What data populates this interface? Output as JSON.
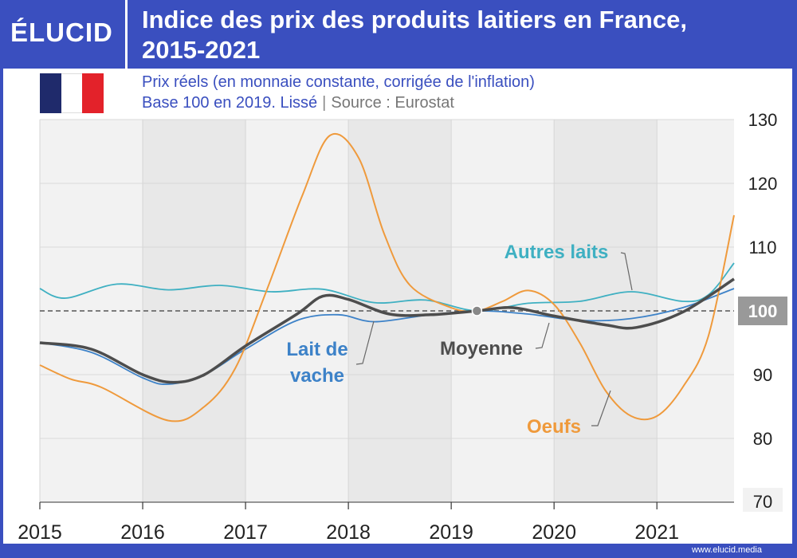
{
  "header": {
    "logo": "ÉLUCID",
    "title_line1": "Indice des prix des produits laitiers en France,",
    "title_line2": "2015-2021"
  },
  "subtitle": {
    "line1": "Prix réels (en monnaie constante, corrigée de l'inflation)",
    "line2_main": "Base 100 en 2019. Lissé",
    "line2_sep": "|",
    "line2_source": "Source : Eurostat"
  },
  "footer": {
    "site": "www.elucid.media"
  },
  "colors": {
    "brand": "#3a4fbf",
    "autres_laits": "#3fb0c2",
    "lait_de_vache": "#3d82c8",
    "moyenne": "#4d4d4d",
    "oeufs": "#ef9a3c",
    "flag_blue": "#1f2a6b",
    "flag_red": "#e3222a"
  },
  "chart_data": {
    "type": "line",
    "title": "Indice des prix des produits laitiers en France, 2015-2021",
    "x_ticks": [
      "2015",
      "2016",
      "2017",
      "2018",
      "2019",
      "2020",
      "2021"
    ],
    "xlim": [
      2015,
      2021.75
    ],
    "y_ticks": [
      "70",
      "80",
      "90",
      "100",
      "110",
      "120",
      "130"
    ],
    "ylim": [
      70,
      130
    ],
    "reference_line": 100,
    "reference_label": "100",
    "grid": true,
    "series": [
      {
        "name": "Autres laits",
        "color_key": "autres_laits",
        "points": [
          [
            2015,
            103.5
          ],
          [
            2015.25,
            102
          ],
          [
            2015.75,
            104.2
          ],
          [
            2016.25,
            103.3
          ],
          [
            2016.75,
            104
          ],
          [
            2017.25,
            103
          ],
          [
            2017.75,
            103.4
          ],
          [
            2018.25,
            101.3
          ],
          [
            2018.75,
            101.7
          ],
          [
            2019.25,
            100
          ],
          [
            2019.75,
            101.2
          ],
          [
            2020.25,
            101.5
          ],
          [
            2020.75,
            103
          ],
          [
            2021.25,
            101.5
          ],
          [
            2021.5,
            102.5
          ],
          [
            2021.75,
            107.5
          ]
        ]
      },
      {
        "name": "Lait de vache",
        "color_key": "lait_de_vache",
        "points": [
          [
            2015,
            95
          ],
          [
            2015.5,
            93.5
          ],
          [
            2016,
            89.5
          ],
          [
            2016.25,
            88.5
          ],
          [
            2016.6,
            90
          ],
          [
            2017,
            94
          ],
          [
            2017.5,
            98.5
          ],
          [
            2017.9,
            99.4
          ],
          [
            2018.25,
            98.3
          ],
          [
            2018.75,
            99.3
          ],
          [
            2019.25,
            100
          ],
          [
            2019.75,
            99.5
          ],
          [
            2020.25,
            98.5
          ],
          [
            2020.75,
            98.8
          ],
          [
            2021.25,
            100.5
          ],
          [
            2021.75,
            103.5
          ]
        ]
      },
      {
        "name": "Moyenne",
        "color_key": "moyenne",
        "points": [
          [
            2015,
            95
          ],
          [
            2015.5,
            94
          ],
          [
            2016,
            90
          ],
          [
            2016.3,
            88.8
          ],
          [
            2016.6,
            90
          ],
          [
            2017,
            94.5
          ],
          [
            2017.5,
            99.5
          ],
          [
            2017.75,
            102.3
          ],
          [
            2018,
            101.8
          ],
          [
            2018.4,
            99.5
          ],
          [
            2018.8,
            99.4
          ],
          [
            2019.25,
            100
          ],
          [
            2019.6,
            100.5
          ],
          [
            2020,
            99.2
          ],
          [
            2020.5,
            97.8
          ],
          [
            2020.8,
            97.4
          ],
          [
            2021.25,
            99.8
          ],
          [
            2021.75,
            105
          ]
        ]
      },
      {
        "name": "Oeufs",
        "color_key": "oeufs",
        "points": [
          [
            2015,
            91.5
          ],
          [
            2015.3,
            89.3
          ],
          [
            2015.6,
            88
          ],
          [
            2016.25,
            82.8
          ],
          [
            2016.6,
            85
          ],
          [
            2016.9,
            91
          ],
          [
            2017.2,
            103
          ],
          [
            2017.55,
            118
          ],
          [
            2017.82,
            127.5
          ],
          [
            2018.1,
            124
          ],
          [
            2018.35,
            112
          ],
          [
            2018.6,
            104
          ],
          [
            2019,
            100.5
          ],
          [
            2019.25,
            100
          ],
          [
            2019.5,
            101.5
          ],
          [
            2019.75,
            103.2
          ],
          [
            2020,
            101
          ],
          [
            2020.25,
            95
          ],
          [
            2020.5,
            87.5
          ],
          [
            2020.75,
            83.5
          ],
          [
            2021,
            83.5
          ],
          [
            2021.25,
            88
          ],
          [
            2021.5,
            96
          ],
          [
            2021.75,
            115
          ]
        ]
      }
    ],
    "annotations": [
      {
        "text": "Autres laits",
        "color_key": "autres_laits"
      },
      {
        "text": "Lait de",
        "text2": "vache",
        "color_key": "lait_de_vache"
      },
      {
        "text": "Moyenne",
        "color_key": "moyenne"
      },
      {
        "text": "Oeufs",
        "color_key": "oeufs"
      }
    ]
  }
}
